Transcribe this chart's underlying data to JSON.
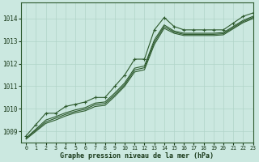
{
  "bg_color": "#cbe8e0",
  "grid_color": "#b0d4c8",
  "line_color": "#2d5a2d",
  "text_color": "#1a3a1a",
  "xlabel": "Graphe pression niveau de la mer (hPa)",
  "xlim": [
    -0.5,
    23
  ],
  "ylim": [
    1008.5,
    1014.7
  ],
  "yticks": [
    1009,
    1010,
    1011,
    1012,
    1013,
    1014
  ],
  "xticks": [
    0,
    1,
    2,
    3,
    4,
    5,
    6,
    7,
    8,
    9,
    10,
    11,
    12,
    13,
    14,
    15,
    16,
    17,
    18,
    19,
    20,
    21,
    22,
    23
  ],
  "series_main": [
    1008.8,
    1009.3,
    1009.8,
    1009.8,
    1010.1,
    1010.2,
    1010.3,
    1010.5,
    1010.5,
    1011.0,
    1011.5,
    1012.2,
    1012.2,
    1013.5,
    1014.05,
    1013.65,
    1013.5,
    1013.5,
    1013.5,
    1013.5,
    1013.5,
    1013.8,
    1014.1,
    1014.25
  ],
  "series_plain": [
    [
      1008.7,
      1009.1,
      1009.5,
      1009.65,
      1009.82,
      1009.95,
      1010.05,
      1010.25,
      1010.3,
      1010.7,
      1011.15,
      1011.8,
      1011.9,
      1013.05,
      1013.72,
      1013.45,
      1013.35,
      1013.35,
      1013.35,
      1013.35,
      1013.38,
      1013.65,
      1013.92,
      1014.1
    ],
    [
      1008.7,
      1009.05,
      1009.42,
      1009.58,
      1009.75,
      1009.88,
      1009.98,
      1010.18,
      1010.23,
      1010.62,
      1011.07,
      1011.72,
      1011.82,
      1012.95,
      1013.65,
      1013.4,
      1013.3,
      1013.3,
      1013.3,
      1013.3,
      1013.33,
      1013.6,
      1013.87,
      1014.05
    ],
    [
      1008.65,
      1009.0,
      1009.35,
      1009.5,
      1009.68,
      1009.82,
      1009.91,
      1010.1,
      1010.15,
      1010.55,
      1011.0,
      1011.63,
      1011.73,
      1012.85,
      1013.57,
      1013.35,
      1013.25,
      1013.25,
      1013.25,
      1013.25,
      1013.28,
      1013.55,
      1013.82,
      1014.0
    ]
  ]
}
